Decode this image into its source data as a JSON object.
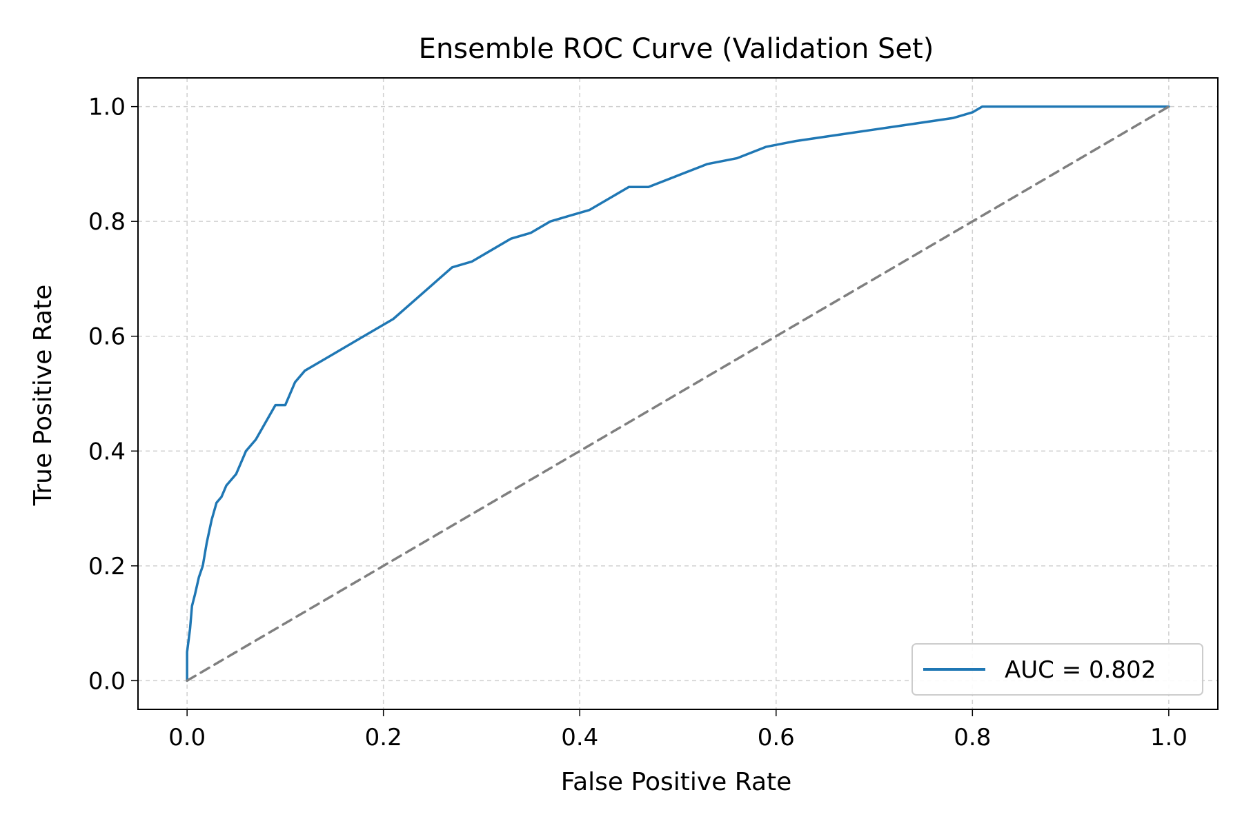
{
  "chart_data": {
    "type": "line",
    "title": "Ensemble ROC Curve (Validation Set)",
    "xlabel": "False Positive Rate",
    "ylabel": "True Positive Rate",
    "xlim": [
      -0.05,
      1.05
    ],
    "ylim": [
      -0.05,
      1.05
    ],
    "x_ticks": [
      "0.0",
      "0.2",
      "0.4",
      "0.6",
      "0.8",
      "1.0"
    ],
    "y_ticks": [
      "0.0",
      "0.2",
      "0.4",
      "0.6",
      "0.8",
      "1.0"
    ],
    "grid": true,
    "grid_style": "dashed",
    "legend_position": "lower-right",
    "series": [
      {
        "name": "AUC = 0.802",
        "color": "#1f77b4",
        "style": "solid",
        "x": [
          0.0,
          0.0,
          0.003,
          0.005,
          0.008,
          0.012,
          0.016,
          0.02,
          0.025,
          0.03,
          0.035,
          0.04,
          0.05,
          0.06,
          0.07,
          0.08,
          0.09,
          0.1,
          0.11,
          0.12,
          0.13,
          0.15,
          0.17,
          0.19,
          0.21,
          0.23,
          0.25,
          0.27,
          0.29,
          0.31,
          0.33,
          0.35,
          0.37,
          0.39,
          0.41,
          0.43,
          0.45,
          0.47,
          0.5,
          0.53,
          0.56,
          0.59,
          0.62,
          0.66,
          0.7,
          0.74,
          0.78,
          0.8,
          0.81,
          1.0
        ],
        "y": [
          0.0,
          0.05,
          0.09,
          0.13,
          0.15,
          0.18,
          0.2,
          0.24,
          0.28,
          0.31,
          0.32,
          0.34,
          0.36,
          0.4,
          0.42,
          0.45,
          0.48,
          0.48,
          0.52,
          0.54,
          0.55,
          0.57,
          0.59,
          0.61,
          0.63,
          0.66,
          0.69,
          0.72,
          0.73,
          0.75,
          0.77,
          0.78,
          0.8,
          0.81,
          0.82,
          0.84,
          0.86,
          0.86,
          0.88,
          0.9,
          0.91,
          0.93,
          0.94,
          0.95,
          0.96,
          0.97,
          0.98,
          0.99,
          1.0,
          1.0
        ]
      },
      {
        "name": "",
        "color": "#7f7f7f",
        "style": "dashed",
        "x": [
          0.0,
          1.0
        ],
        "y": [
          0.0,
          1.0
        ]
      }
    ]
  }
}
